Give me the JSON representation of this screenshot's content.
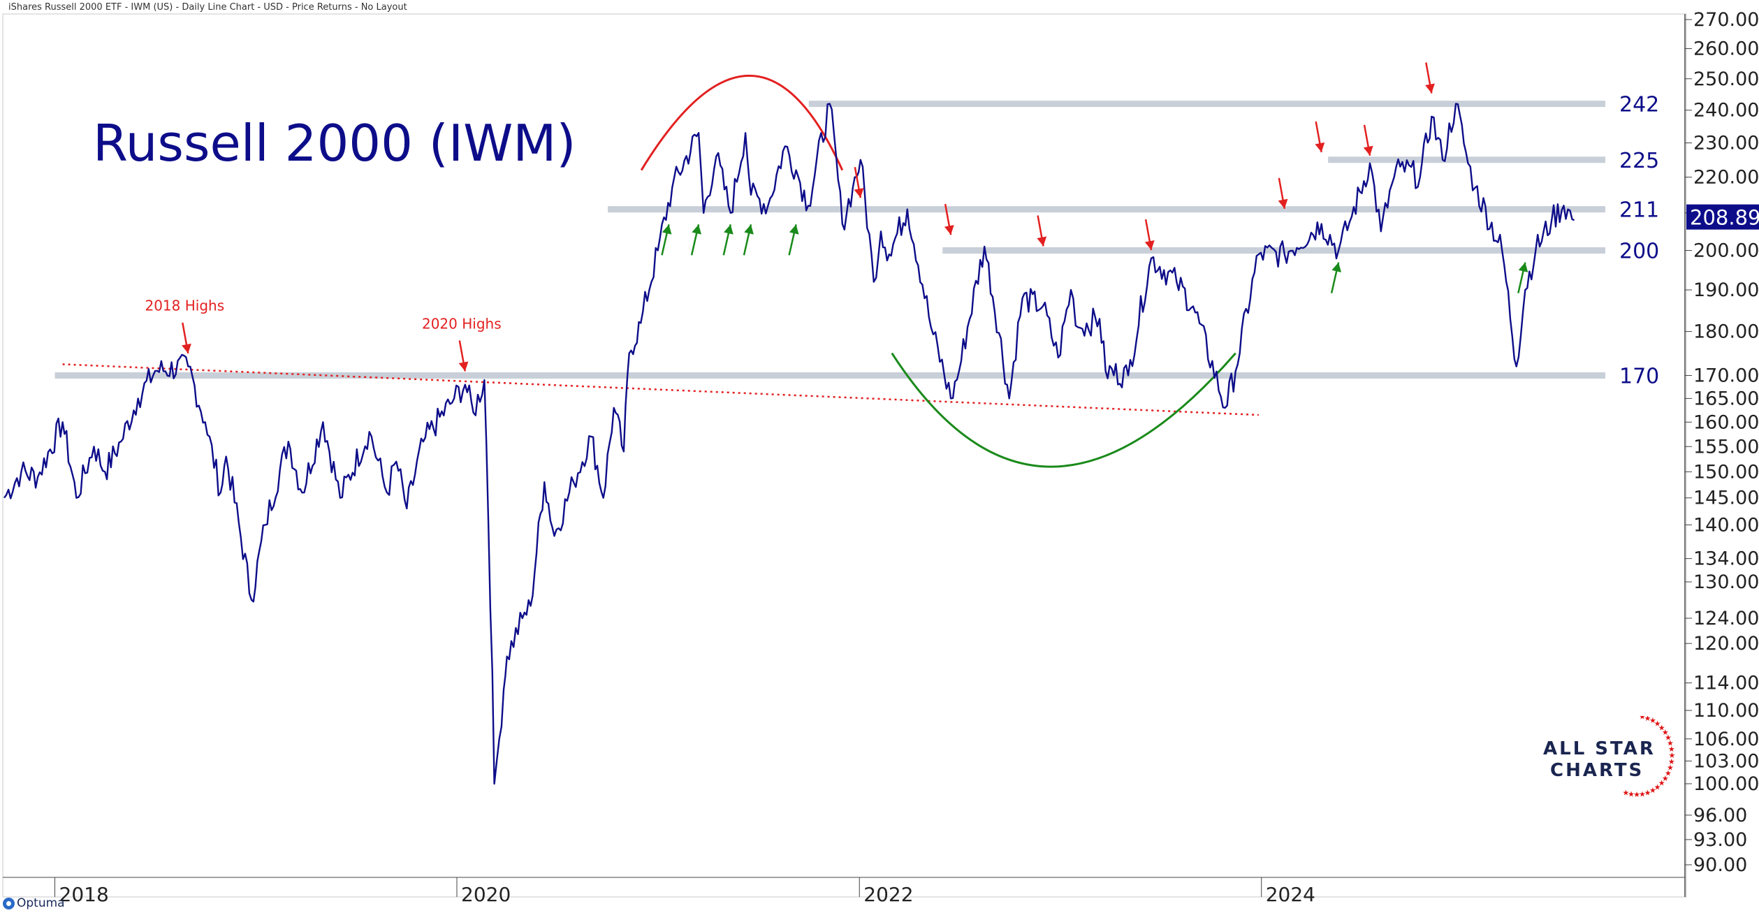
{
  "header": {
    "subtitle": "iShares Russell 2000 ETF - IWM (US) - Daily Line Chart - USD - Price Returns - No Layout"
  },
  "footer": {
    "optuma_logo": "Optuma"
  },
  "brand": {
    "line1": "ALL STAR",
    "line2": "CHARTS"
  },
  "colors": {
    "line": "#0d0d8a",
    "title": "#0d0d8a",
    "red": "#e32020",
    "green": "#1a8a1a",
    "level": "#c8cfd8",
    "trend": "#e32020",
    "last_bg": "#0d0d8a"
  },
  "chart_data": {
    "type": "line",
    "title": "Russell 2000 (IWM)",
    "xlabel": "",
    "ylabel": "",
    "scale": "log",
    "x_ticks": [
      "2018",
      "2020",
      "2022",
      "2024"
    ],
    "y_ticks": [
      90,
      93,
      96,
      100,
      103,
      106,
      110,
      114,
      120,
      124,
      130,
      134,
      140,
      145,
      150,
      155,
      160,
      165,
      170,
      180,
      190,
      200,
      210,
      220,
      230,
      240,
      250,
      260,
      270
    ],
    "y_tick_labels": [
      "90.00",
      "93.00",
      "96.00",
      "100.00",
      "103.00",
      "106.00",
      "110.00",
      "114.00",
      "120.00",
      "124.00",
      "130.00",
      "134.00",
      "140.00",
      "145.00",
      "150.00",
      "155.00",
      "160.00",
      "165.00",
      "170.00",
      "180.00",
      "190.00",
      "200.00",
      "210.00",
      "220.00",
      "230.00",
      "240.00",
      "250.00",
      "260.00",
      "270.00"
    ],
    "ylim": [
      88.5,
      272
    ],
    "last_value": "208.89",
    "series": [
      {
        "x": [
          "2017-10-01",
          "2017-11-01",
          "2017-12-01",
          "2018-01-15",
          "2018-02-09",
          "2018-03-13",
          "2018-04-02",
          "2018-05-01",
          "2018-06-01",
          "2018-07-02",
          "2018-08-31",
          "2018-10-01",
          "2018-10-29",
          "2018-11-08",
          "2018-12-24",
          "2019-01-18",
          "2019-03-01",
          "2019-03-26",
          "2019-05-03",
          "2019-06-03",
          "2019-07-26",
          "2019-08-27",
          "2019-09-13",
          "2019-10-02",
          "2019-11-01",
          "2019-12-27",
          "2020-01-16",
          "2020-01-31",
          "2020-02-20",
          "2020-03-09",
          "2020-03-18",
          "2020-03-26",
          "2020-04-01",
          "2020-04-29",
          "2020-05-14",
          "2020-06-08",
          "2020-06-26",
          "2020-07-31",
          "2020-09-01",
          "2020-09-23",
          "2020-10-12",
          "2020-10-30",
          "2020-11-09",
          "2020-11-30",
          "2020-12-31",
          "2021-01-26",
          "2021-03-15",
          "2021-03-24",
          "2021-04-16",
          "2021-05-12",
          "2021-06-08",
          "2021-06-18",
          "2021-07-19",
          "2021-08-19",
          "2021-09-08",
          "2021-09-30",
          "2021-11-08",
          "2021-12-01",
          "2021-12-20",
          "2022-01-03",
          "2022-01-27",
          "2022-02-09",
          "2022-02-24",
          "2022-03-29",
          "2022-05-11",
          "2022-06-16",
          "2022-07-01",
          "2022-08-16",
          "2022-09-30",
          "2022-10-24",
          "2022-11-30",
          "2022-12-28",
          "2023-01-20",
          "2023-02-02",
          "2023-03-13",
          "2023-03-24",
          "2023-05-04",
          "2023-06-15",
          "2023-07-31",
          "2023-08-30",
          "2023-10-27",
          "2023-11-15",
          "2023-12-27",
          "2024-02-12",
          "2024-04-19",
          "2024-05-20",
          "2024-06-13",
          "2024-07-16",
          "2024-08-05",
          "2024-08-29",
          "2024-09-09",
          "2024-10-15",
          "2024-11-05",
          "2024-11-25",
          "2024-12-19",
          "2025-01-10",
          "2025-01-23",
          "2025-03-13",
          "2025-04-08",
          "2025-04-24",
          "2025-05-13",
          "2025-06-11",
          "2025-07-03",
          "2025-07-22"
        ],
        "values": [
          145,
          150,
          149,
          160,
          145,
          155,
          150,
          156,
          165,
          171,
          172,
          160,
          146,
          153,
          127,
          140,
          156,
          146,
          160,
          145,
          158,
          146,
          152,
          143,
          156,
          165,
          168,
          162,
          169,
          100,
          106,
          113,
          118,
          124,
          126,
          148,
          138,
          148,
          157,
          145,
          163,
          154,
          175,
          182,
          200,
          217,
          233,
          210,
          226,
          210,
          233,
          215,
          212,
          229,
          222,
          212,
          242,
          207,
          217,
          225,
          192,
          205,
          199,
          211,
          181,
          165,
          171,
          201,
          165,
          188,
          186,
          174,
          190,
          181,
          183,
          171,
          170,
          198,
          192,
          186,
          163,
          171,
          199,
          199,
          207,
          200,
          209,
          224,
          205,
          220,
          223,
          220,
          238,
          225,
          242,
          224,
          217,
          200,
          172,
          190,
          200,
          208,
          212,
          208
        ]
      }
    ],
    "levels": [
      {
        "value": 242,
        "label": "242"
      },
      {
        "value": 225,
        "label": "225"
      },
      {
        "value": 211,
        "label": "211"
      },
      {
        "value": 200,
        "label": "200"
      },
      {
        "value": 170,
        "label": "170"
      }
    ],
    "annotations": [
      {
        "text": "2018 Highs",
        "x": "2018-08-31",
        "y": 172
      },
      {
        "text": "2020 Highs",
        "x": "2020-01-16",
        "y": 168
      }
    ],
    "trendline": {
      "from": [
        "2018-01-15",
        172.5
      ],
      "to": [
        "2023-12-27",
        161.5
      ]
    },
    "arcs": [
      {
        "color": "red",
        "from": [
          "2020-12-01",
          222
        ],
        "peak": [
          "2021-06-15",
          251
        ],
        "to": [
          "2021-12-01",
          222
        ]
      },
      {
        "color": "green",
        "from": [
          "2022-03-01",
          175
        ],
        "peak": [
          "2022-12-15",
          151
        ],
        "to": [
          "2023-11-15",
          175
        ]
      }
    ],
    "red_arrows": [
      [
        "2018-08-31",
        174
      ],
      [
        "2020-01-16",
        170
      ],
      [
        "2022-01-03",
        213
      ],
      [
        "2022-06-16",
        203
      ],
      [
        "2022-12-01",
        200
      ],
      [
        "2023-06-15",
        199
      ],
      [
        "2024-02-12",
        210
      ],
      [
        "2024-04-19",
        226
      ],
      [
        "2024-07-16",
        225
      ],
      [
        "2024-11-05",
        244
      ]
    ],
    "green_arrows": [
      [
        "2021-01-20",
        208
      ],
      [
        "2021-03-15",
        208
      ],
      [
        "2021-05-12",
        208
      ],
      [
        "2021-06-18",
        208
      ],
      [
        "2021-09-08",
        208
      ],
      [
        "2024-05-20",
        198
      ],
      [
        "2025-04-24",
        198
      ]
    ]
  }
}
